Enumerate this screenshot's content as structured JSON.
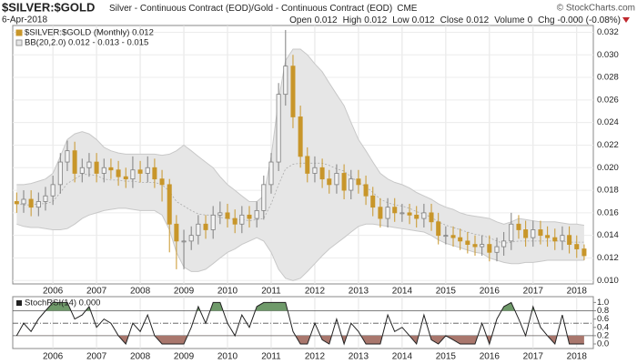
{
  "header": {
    "title": "$SILVER:$GOLD",
    "description": "Silver - Continuous Contract (EOD)/Gold - Continuous Contract (EOD)",
    "exchange": "CME",
    "watermark": "© StockCharts.com",
    "date": "6-Apr-2018",
    "quote": [
      {
        "label": "Open",
        "value": "0.012"
      },
      {
        "label": "High",
        "value": "0.012"
      },
      {
        "label": "Low",
        "value": "0.012"
      },
      {
        "label": "Close",
        "value": "0.012"
      },
      {
        "label": "Volume",
        "value": "0"
      },
      {
        "label": "Chg",
        "value": "-0.000 (-0.08%)"
      }
    ]
  },
  "chart_data": [
    {
      "type": "candlestick",
      "legend": [
        "$SILVER:$GOLD (Monthly) 0.012",
        "BB(20,2.0) 0.012 - 0.013 - 0.015"
      ],
      "x": [
        2005.17,
        2005.33,
        2005.5,
        2005.67,
        2005.83,
        2006,
        2006.17,
        2006.33,
        2006.5,
        2006.67,
        2006.83,
        2007,
        2007.17,
        2007.33,
        2007.5,
        2007.67,
        2007.83,
        2008,
        2008.17,
        2008.33,
        2008.5,
        2008.67,
        2008.83,
        2009,
        2009.17,
        2009.33,
        2009.5,
        2009.67,
        2009.83,
        2010,
        2010.17,
        2010.33,
        2010.5,
        2010.67,
        2010.83,
        2011,
        2011.17,
        2011.33,
        2011.5,
        2011.67,
        2011.83,
        2012,
        2012.17,
        2012.33,
        2012.5,
        2012.67,
        2012.83,
        2013,
        2013.17,
        2013.33,
        2013.5,
        2013.67,
        2013.83,
        2014,
        2014.17,
        2014.33,
        2014.5,
        2014.67,
        2014.83,
        2015,
        2015.17,
        2015.33,
        2015.5,
        2015.67,
        2015.83,
        2016,
        2016.17,
        2016.33,
        2016.5,
        2016.67,
        2016.83,
        2017,
        2017.17,
        2017.33,
        2017.5,
        2017.67,
        2017.83,
        2018,
        2018.17
      ],
      "open": [
        0.017,
        0.0168,
        0.0172,
        0.0165,
        0.017,
        0.0175,
        0.0185,
        0.0205,
        0.0215,
        0.0195,
        0.02,
        0.0205,
        0.0195,
        0.02,
        0.0198,
        0.0192,
        0.019,
        0.0198,
        0.0195,
        0.02,
        0.019,
        0.0185,
        0.015,
        0.0135,
        0.0135,
        0.014,
        0.015,
        0.0145,
        0.0158,
        0.016,
        0.0155,
        0.015,
        0.0158,
        0.0155,
        0.0162,
        0.0185,
        0.0205,
        0.0265,
        0.029,
        0.0245,
        0.021,
        0.0195,
        0.02,
        0.019,
        0.0185,
        0.0195,
        0.018,
        0.019,
        0.0185,
        0.0175,
        0.0165,
        0.0155,
        0.0165,
        0.016,
        0.016,
        0.0158,
        0.0155,
        0.016,
        0.0152,
        0.014,
        0.014,
        0.0138,
        0.0135,
        0.0132,
        0.013,
        0.0132,
        0.0125,
        0.013,
        0.0135,
        0.015,
        0.0145,
        0.0138,
        0.0145,
        0.014,
        0.0138,
        0.0135,
        0.014,
        0.0132,
        0.0128
      ],
      "high": [
        0.0178,
        0.018,
        0.018,
        0.0178,
        0.0183,
        0.0193,
        0.0213,
        0.0224,
        0.0223,
        0.0208,
        0.0213,
        0.0213,
        0.0208,
        0.0208,
        0.0206,
        0.02,
        0.021,
        0.0206,
        0.021,
        0.0208,
        0.0198,
        0.019,
        0.0158,
        0.0145,
        0.0148,
        0.0158,
        0.0158,
        0.0166,
        0.017,
        0.0168,
        0.0163,
        0.0166,
        0.0166,
        0.017,
        0.0193,
        0.0213,
        0.0275,
        0.0322,
        0.03,
        0.0255,
        0.0218,
        0.021,
        0.0208,
        0.0198,
        0.0203,
        0.0203,
        0.0198,
        0.0198,
        0.0193,
        0.0183,
        0.0173,
        0.0173,
        0.0173,
        0.0168,
        0.0168,
        0.0166,
        0.0168,
        0.0168,
        0.016,
        0.0148,
        0.0148,
        0.0146,
        0.0143,
        0.014,
        0.014,
        0.014,
        0.0138,
        0.0143,
        0.016,
        0.0158,
        0.0153,
        0.0153,
        0.0153,
        0.0148,
        0.0146,
        0.0148,
        0.0148,
        0.014,
        0.0132
      ],
      "low": [
        0.016,
        0.016,
        0.0157,
        0.0157,
        0.0162,
        0.0167,
        0.0177,
        0.0197,
        0.0187,
        0.0187,
        0.0192,
        0.0187,
        0.0187,
        0.019,
        0.0184,
        0.0182,
        0.0182,
        0.0187,
        0.0187,
        0.0182,
        0.017,
        0.0125,
        0.011,
        0.011,
        0.0127,
        0.0132,
        0.0137,
        0.0137,
        0.015,
        0.0147,
        0.0142,
        0.0142,
        0.0147,
        0.0147,
        0.0154,
        0.0177,
        0.0197,
        0.0255,
        0.0235,
        0.02,
        0.0187,
        0.0187,
        0.0182,
        0.0177,
        0.0177,
        0.0172,
        0.0172,
        0.0177,
        0.0167,
        0.0157,
        0.0147,
        0.0147,
        0.0152,
        0.0152,
        0.015,
        0.0147,
        0.0147,
        0.0144,
        0.0132,
        0.0132,
        0.013,
        0.0127,
        0.0124,
        0.0122,
        0.0122,
        0.0117,
        0.0117,
        0.0122,
        0.0127,
        0.0137,
        0.013,
        0.013,
        0.0132,
        0.013,
        0.0127,
        0.0127,
        0.0124,
        0.012,
        0.0118
      ],
      "close": [
        0.0168,
        0.0172,
        0.0165,
        0.017,
        0.0175,
        0.0185,
        0.0205,
        0.0215,
        0.0195,
        0.02,
        0.0205,
        0.0195,
        0.02,
        0.0198,
        0.0192,
        0.019,
        0.0198,
        0.0195,
        0.02,
        0.019,
        0.0185,
        0.015,
        0.0135,
        0.0135,
        0.014,
        0.015,
        0.0145,
        0.0158,
        0.016,
        0.0155,
        0.015,
        0.0158,
        0.0155,
        0.0162,
        0.0185,
        0.0205,
        0.0265,
        0.029,
        0.0245,
        0.021,
        0.0195,
        0.02,
        0.019,
        0.0185,
        0.0195,
        0.018,
        0.019,
        0.0185,
        0.0175,
        0.0165,
        0.0155,
        0.0165,
        0.016,
        0.016,
        0.0158,
        0.0155,
        0.016,
        0.0152,
        0.014,
        0.014,
        0.0138,
        0.0135,
        0.0132,
        0.013,
        0.0132,
        0.0125,
        0.013,
        0.0135,
        0.015,
        0.0145,
        0.0138,
        0.0145,
        0.014,
        0.0138,
        0.0135,
        0.014,
        0.0132,
        0.0128,
        0.0122
      ],
      "bb_upper": [
        0.0185,
        0.0185,
        0.0186,
        0.0188,
        0.019,
        0.0195,
        0.021,
        0.0225,
        0.023,
        0.0232,
        0.023,
        0.0225,
        0.0218,
        0.0215,
        0.0213,
        0.0212,
        0.0212,
        0.0212,
        0.0212,
        0.0212,
        0.0211,
        0.0212,
        0.0215,
        0.022,
        0.0215,
        0.021,
        0.0205,
        0.02,
        0.0192,
        0.0185,
        0.018,
        0.0175,
        0.017,
        0.017,
        0.0175,
        0.021,
        0.026,
        0.0295,
        0.0305,
        0.0305,
        0.03,
        0.0292,
        0.0285,
        0.0275,
        0.0265,
        0.0255,
        0.024,
        0.0225,
        0.0215,
        0.0205,
        0.0195,
        0.019,
        0.0187,
        0.0185,
        0.0182,
        0.0178,
        0.0175,
        0.0172,
        0.0168,
        0.0165,
        0.0163,
        0.016,
        0.0158,
        0.0157,
        0.0156,
        0.0155,
        0.0152,
        0.015,
        0.0152,
        0.0155,
        0.0154,
        0.0153,
        0.0152,
        0.0152,
        0.0152,
        0.0151,
        0.015,
        0.015,
        0.0149
      ],
      "bb_middle": [
        0.0168,
        0.0167,
        0.0167,
        0.0168,
        0.0168,
        0.017,
        0.0178,
        0.0186,
        0.019,
        0.0194,
        0.0194,
        0.0193,
        0.019,
        0.0189,
        0.0189,
        0.0188,
        0.0188,
        0.0187,
        0.0187,
        0.0187,
        0.0185,
        0.0179,
        0.017,
        0.0166,
        0.0162,
        0.0159,
        0.0158,
        0.0158,
        0.0156,
        0.0155,
        0.0154,
        0.0154,
        0.0153,
        0.0154,
        0.0155,
        0.0168,
        0.0185,
        0.0199,
        0.0203,
        0.0204,
        0.0204,
        0.0204,
        0.0204,
        0.0202,
        0.0199,
        0.0197,
        0.0192,
        0.0187,
        0.0183,
        0.0178,
        0.0172,
        0.0169,
        0.0167,
        0.0166,
        0.0164,
        0.0161,
        0.0159,
        0.0156,
        0.0152,
        0.0149,
        0.0147,
        0.0145,
        0.0143,
        0.0141,
        0.014,
        0.0138,
        0.0135,
        0.0133,
        0.0134,
        0.0135,
        0.0135,
        0.0135,
        0.0135,
        0.0135,
        0.0135,
        0.0135,
        0.0134,
        0.0134,
        0.0134
      ],
      "bb_lower": [
        0.015,
        0.0148,
        0.0147,
        0.0147,
        0.0146,
        0.0145,
        0.0145,
        0.0146,
        0.015,
        0.0155,
        0.0158,
        0.016,
        0.0162,
        0.0163,
        0.0164,
        0.0164,
        0.0163,
        0.0162,
        0.0162,
        0.0162,
        0.0158,
        0.0145,
        0.0125,
        0.0112,
        0.0108,
        0.0108,
        0.011,
        0.0115,
        0.012,
        0.0125,
        0.0128,
        0.0132,
        0.0135,
        0.0138,
        0.0135,
        0.0125,
        0.011,
        0.0102,
        0.01,
        0.0102,
        0.0108,
        0.0115,
        0.0122,
        0.0128,
        0.0133,
        0.0138,
        0.0143,
        0.0148,
        0.015,
        0.015,
        0.0149,
        0.0148,
        0.0147,
        0.0146,
        0.0145,
        0.0144,
        0.0143,
        0.014,
        0.0136,
        0.0133,
        0.0131,
        0.0129,
        0.0127,
        0.0125,
        0.0124,
        0.012,
        0.0118,
        0.0116,
        0.0115,
        0.0115,
        0.0116,
        0.0116,
        0.0117,
        0.0118,
        0.0118,
        0.0118,
        0.0118,
        0.0118,
        0.0118
      ],
      "up_color": "#7f7f7f",
      "down_color": "#c8962a",
      "band_color": "#e6e6e6",
      "band_line_color": "#c8c8c8",
      "xlim": [
        2005.08,
        2018.38
      ],
      "xticks": [
        2006,
        2007,
        2008,
        2009,
        2010,
        2011,
        2012,
        2013,
        2014,
        2015,
        2016,
        2017,
        2018
      ],
      "ylim": [
        0.0097,
        0.0326
      ],
      "yticks": [
        {
          "value": 0.01,
          "label": "0.010"
        },
        {
          "value": 0.012,
          "label": "0.012"
        },
        {
          "value": 0.014,
          "label": "0.014"
        },
        {
          "value": 0.016,
          "label": "0.016"
        },
        {
          "value": 0.018,
          "label": "0.018"
        },
        {
          "value": 0.02,
          "label": "0.020"
        },
        {
          "value": 0.022,
          "label": "0.022"
        },
        {
          "value": 0.024,
          "label": "0.024"
        },
        {
          "value": 0.026,
          "label": "0.026"
        },
        {
          "value": 0.028,
          "label": "0.028"
        },
        {
          "value": 0.03,
          "label": "0.030"
        },
        {
          "value": 0.032,
          "label": "0.032"
        }
      ],
      "grid": true
    },
    {
      "type": "oscillator",
      "legend": [
        "StochRSI(14) 0.000"
      ],
      "values": [
        0.2,
        0.5,
        0.3,
        0.6,
        0.8,
        1,
        1,
        1,
        0.6,
        0.7,
        0.9,
        0.4,
        0.6,
        0.5,
        0.2,
        0,
        0.5,
        0.3,
        0.7,
        0.2,
        0,
        0,
        0,
        0,
        0.4,
        0.9,
        0.5,
        1,
        1,
        0.5,
        0.2,
        0.7,
        0.4,
        0.9,
        1,
        1,
        1,
        1,
        0.3,
        0,
        0,
        0.5,
        0.1,
        0,
        0.6,
        0,
        0.5,
        0.3,
        0,
        0,
        0,
        0.7,
        0.3,
        0.4,
        0.2,
        0,
        0.7,
        0.1,
        0,
        0.2,
        0.1,
        0,
        0,
        0,
        0.5,
        0,
        0.6,
        0.9,
        1,
        0.6,
        0.2,
        0.9,
        0.4,
        0.2,
        0,
        0.7,
        0,
        0,
        0
      ],
      "color": "#222222",
      "overbought_color": "#6f9a6a",
      "oversold_color": "#a9776d",
      "levels": [
        0.2,
        0.5,
        0.8
      ],
      "xlim": [
        2005.08,
        2018.38
      ],
      "xticks": [
        2006,
        2007,
        2008,
        2009,
        2010,
        2011,
        2012,
        2013,
        2014,
        2015,
        2016,
        2017,
        2018
      ],
      "ylim": [
        -0.11,
        1.14
      ],
      "yticks": [
        {
          "value": 0,
          "label": "0.0"
        },
        {
          "value": 0.2,
          "label": "0.2"
        },
        {
          "value": 0.4,
          "label": "0.4"
        },
        {
          "value": 0.6,
          "label": "0.6"
        },
        {
          "value": 0.8,
          "label": "0.8"
        },
        {
          "value": 1,
          "label": "1.0"
        }
      ]
    }
  ]
}
